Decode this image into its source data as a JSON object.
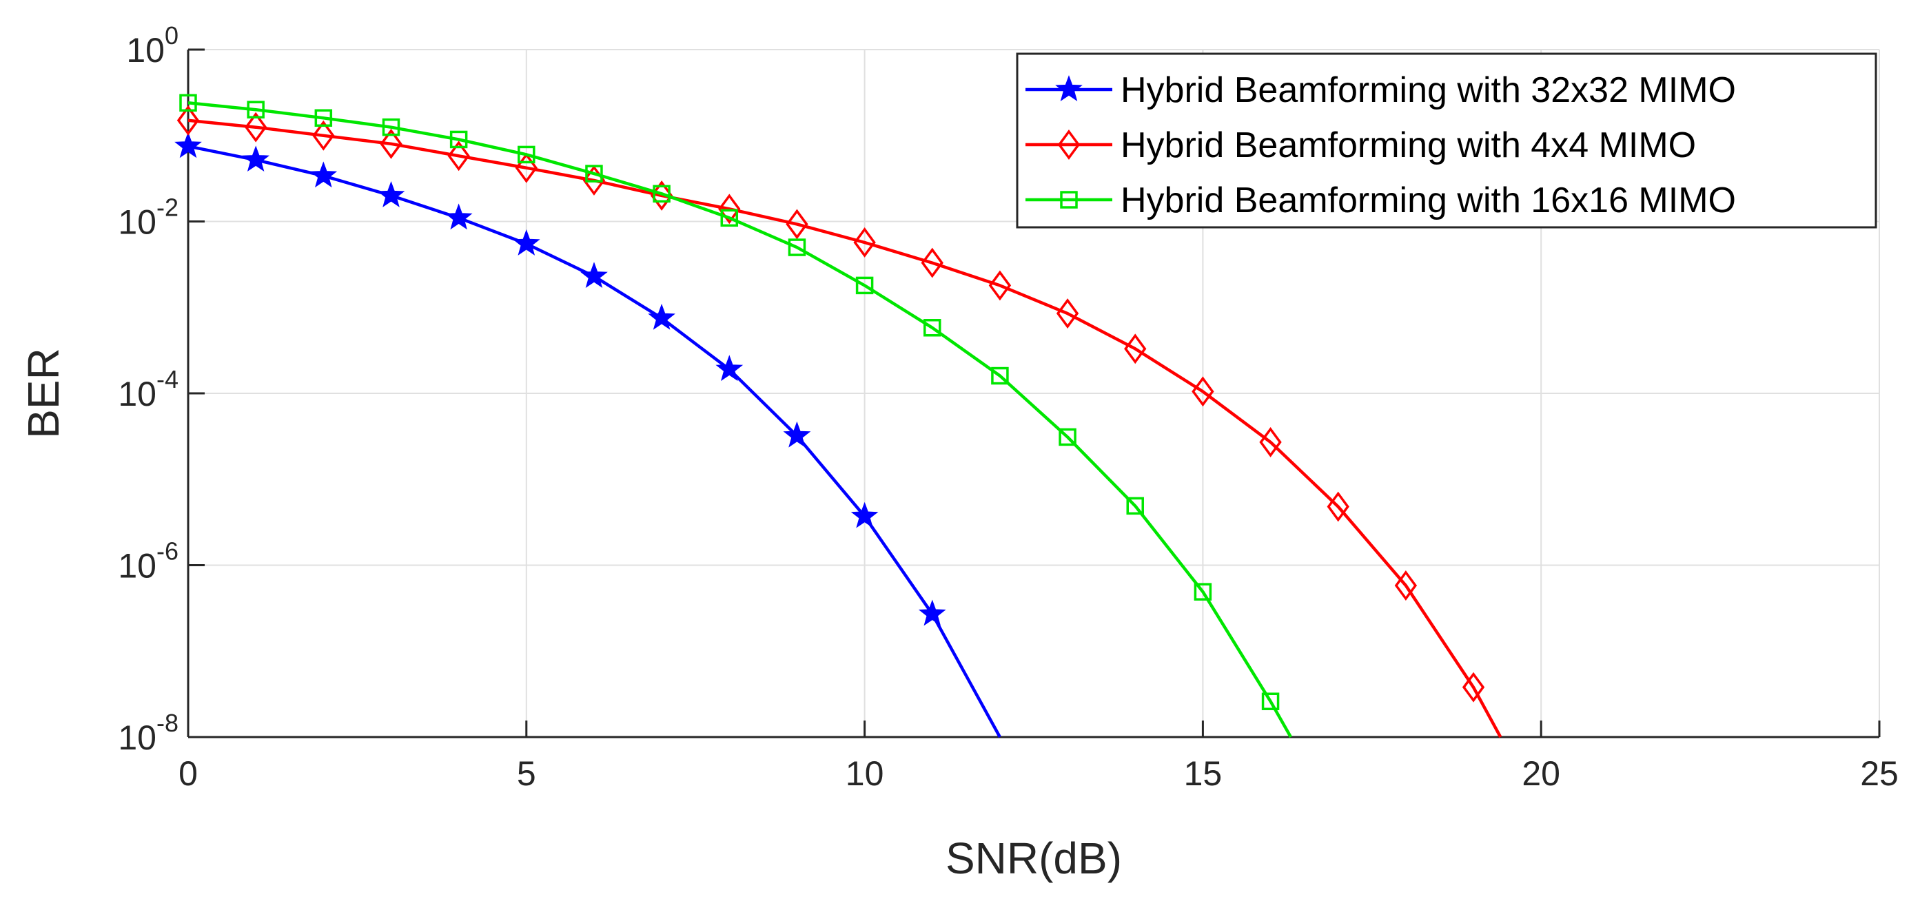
{
  "chart_data": {
    "type": "line",
    "title": "",
    "xlabel": "SNR(dB)",
    "ylabel": "BER",
    "yscale": "log",
    "xlim": [
      0,
      25
    ],
    "ylim": [
      1e-08,
      1
    ],
    "grid": true,
    "legend_position": "top-right",
    "x_ticks": [
      "0",
      "5",
      "10",
      "15",
      "20",
      "25"
    ],
    "y_ticks": [
      {
        "base": "10",
        "exp": "0"
      },
      {
        "base": "10",
        "exp": "-2"
      },
      {
        "base": "10",
        "exp": "-4"
      },
      {
        "base": "10",
        "exp": "-6"
      },
      {
        "base": "10",
        "exp": "-8"
      }
    ],
    "colors": {
      "axis": "#262626",
      "grid": "#e0e0e0"
    },
    "series": [
      {
        "name": "Hybrid Beamforming with 32x32 MIMO",
        "color": "#0000ff",
        "marker": "star",
        "x": [
          0,
          1,
          2,
          3,
          4,
          5,
          6,
          7,
          8,
          9,
          10,
          11,
          12
        ],
        "y": [
          0.075,
          0.052,
          0.034,
          0.02,
          0.011,
          0.0055,
          0.0023,
          0.00075,
          0.00019,
          3.2e-05,
          3.7e-06,
          2.7e-07,
          1e-08
        ],
        "markers_up_to_index": 11
      },
      {
        "name": "Hybrid Beamforming with 4x4 MIMO",
        "color": "#ff0000",
        "marker": "diamond",
        "x": [
          0,
          1,
          2,
          3,
          4,
          5,
          6,
          7,
          8,
          9,
          10,
          11,
          12,
          13,
          14,
          15,
          16,
          17,
          18,
          19,
          19.4
        ],
        "y": [
          0.15,
          0.125,
          0.1,
          0.08,
          0.058,
          0.042,
          0.03,
          0.02,
          0.014,
          0.0093,
          0.0057,
          0.0033,
          0.0018,
          0.00085,
          0.00033,
          0.000105,
          2.7e-05,
          4.8e-06,
          5.8e-07,
          3.8e-08,
          1e-08
        ],
        "markers_up_to_index": 19
      },
      {
        "name": "Hybrid Beamforming with 16x16 MIMO",
        "color": "#00e600",
        "marker": "square",
        "x": [
          0,
          1,
          2,
          3,
          4,
          5,
          6,
          7,
          8,
          9,
          10,
          11,
          12,
          13,
          14,
          15,
          16,
          16.3
        ],
        "y": [
          0.24,
          0.2,
          0.16,
          0.125,
          0.09,
          0.06,
          0.036,
          0.021,
          0.011,
          0.005,
          0.0018,
          0.00058,
          0.00016,
          3.1e-05,
          4.9e-06,
          4.9e-07,
          2.6e-08,
          1e-08
        ],
        "markers_up_to_index": 16
      }
    ]
  }
}
